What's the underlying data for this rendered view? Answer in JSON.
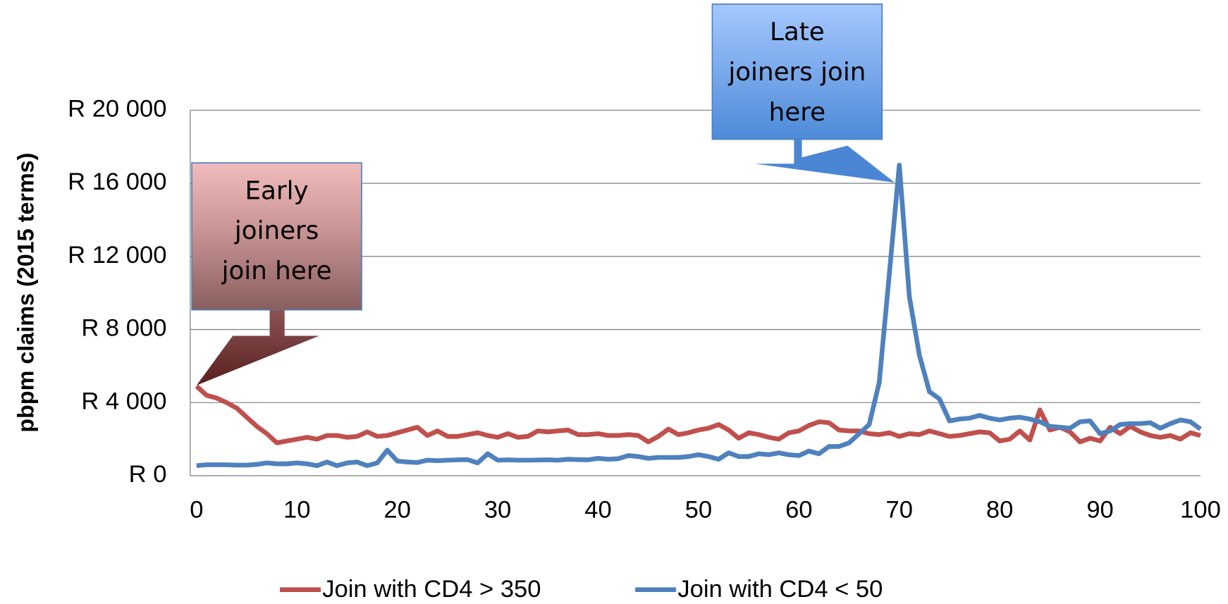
{
  "chart_data": {
    "type": "line",
    "y_label": "pbpm claims (2015 terms)",
    "x": [
      0,
      1,
      2,
      3,
      4,
      5,
      6,
      7,
      8,
      9,
      10,
      11,
      12,
      13,
      14,
      15,
      16,
      17,
      18,
      19,
      20,
      21,
      22,
      23,
      24,
      25,
      26,
      27,
      28,
      29,
      30,
      31,
      32,
      33,
      34,
      35,
      36,
      37,
      38,
      39,
      40,
      41,
      42,
      43,
      44,
      45,
      46,
      47,
      48,
      49,
      50,
      51,
      52,
      53,
      54,
      55,
      56,
      57,
      58,
      59,
      60,
      61,
      62,
      63,
      64,
      65,
      66,
      67,
      68,
      69,
      70,
      71,
      72,
      73,
      74,
      75,
      76,
      77,
      78,
      79,
      80,
      81,
      82,
      83,
      84,
      85,
      86,
      87,
      88,
      89,
      90,
      91,
      92,
      93,
      94,
      95,
      96,
      97,
      98,
      99,
      100
    ],
    "series": [
      {
        "name": "Join with CD4 > 350",
        "color": "#c0504d",
        "values": [
          4900,
          4400,
          4250,
          4000,
          3700,
          3200,
          2700,
          2300,
          1800,
          1900,
          2000,
          2100,
          2000,
          2200,
          2200,
          2100,
          2150,
          2400,
          2150,
          2200,
          2350,
          2500,
          2650,
          2200,
          2450,
          2150,
          2150,
          2250,
          2350,
          2200,
          2100,
          2300,
          2100,
          2150,
          2450,
          2400,
          2450,
          2500,
          2250,
          2250,
          2300,
          2200,
          2200,
          2250,
          2200,
          1850,
          2150,
          2550,
          2250,
          2350,
          2500,
          2600,
          2800,
          2500,
          2050,
          2350,
          2250,
          2100,
          2000,
          2350,
          2450,
          2750,
          2950,
          2900,
          2500,
          2450,
          2450,
          2300,
          2250,
          2350,
          2150,
          2300,
          2250,
          2450,
          2300,
          2150,
          2200,
          2300,
          2400,
          2350,
          1900,
          2000,
          2450,
          1950,
          3600,
          2500,
          2650,
          2400,
          1850,
          2050,
          1900,
          2650,
          2300,
          2700,
          2400,
          2200,
          2100,
          2200,
          2000,
          2350,
          2200
        ]
      },
      {
        "name": "Join with CD4 < 50",
        "color": "#4f81bd",
        "values": [
          550,
          600,
          600,
          600,
          580,
          580,
          620,
          700,
          650,
          650,
          700,
          650,
          550,
          750,
          550,
          700,
          750,
          550,
          700,
          1400,
          800,
          750,
          720,
          850,
          820,
          850,
          870,
          880,
          700,
          1200,
          850,
          870,
          850,
          850,
          860,
          870,
          850,
          900,
          880,
          870,
          950,
          900,
          930,
          1100,
          1050,
          950,
          1000,
          1000,
          1000,
          1050,
          1150,
          1050,
          900,
          1250,
          1050,
          1050,
          1200,
          1150,
          1250,
          1150,
          1100,
          1350,
          1200,
          1600,
          1600,
          1800,
          2300,
          2800,
          5100,
          11000,
          17000,
          9800,
          6600,
          4600,
          4200,
          3000,
          3100,
          3150,
          3300,
          3150,
          3050,
          3150,
          3200,
          3100,
          2950,
          2700,
          2650,
          2600,
          2950,
          3000,
          2300,
          2450,
          2800,
          2850,
          2850,
          2900,
          2600,
          2850,
          3050,
          2950,
          2550
        ]
      }
    ],
    "xlim": [
      0,
      100
    ],
    "xticks": [
      0,
      10,
      20,
      30,
      40,
      50,
      60,
      70,
      80,
      90,
      100
    ],
    "ylim": [
      0,
      20000
    ],
    "yticks": [
      {
        "value": 0,
        "label": "R 0"
      },
      {
        "value": 4000,
        "label": "R 4 000"
      },
      {
        "value": 8000,
        "label": "R 8 000"
      },
      {
        "value": 12000,
        "label": "R 12 000"
      },
      {
        "value": 16000,
        "label": "R 16 000"
      },
      {
        "value": 20000,
        "label": "R 20 000"
      }
    ],
    "grid": true,
    "legend": "bottom",
    "annotations": [
      {
        "lines": [
          "Early",
          "joiners",
          "join here"
        ]
      },
      {
        "lines": [
          "Late",
          "joiners join",
          "here"
        ]
      }
    ]
  }
}
